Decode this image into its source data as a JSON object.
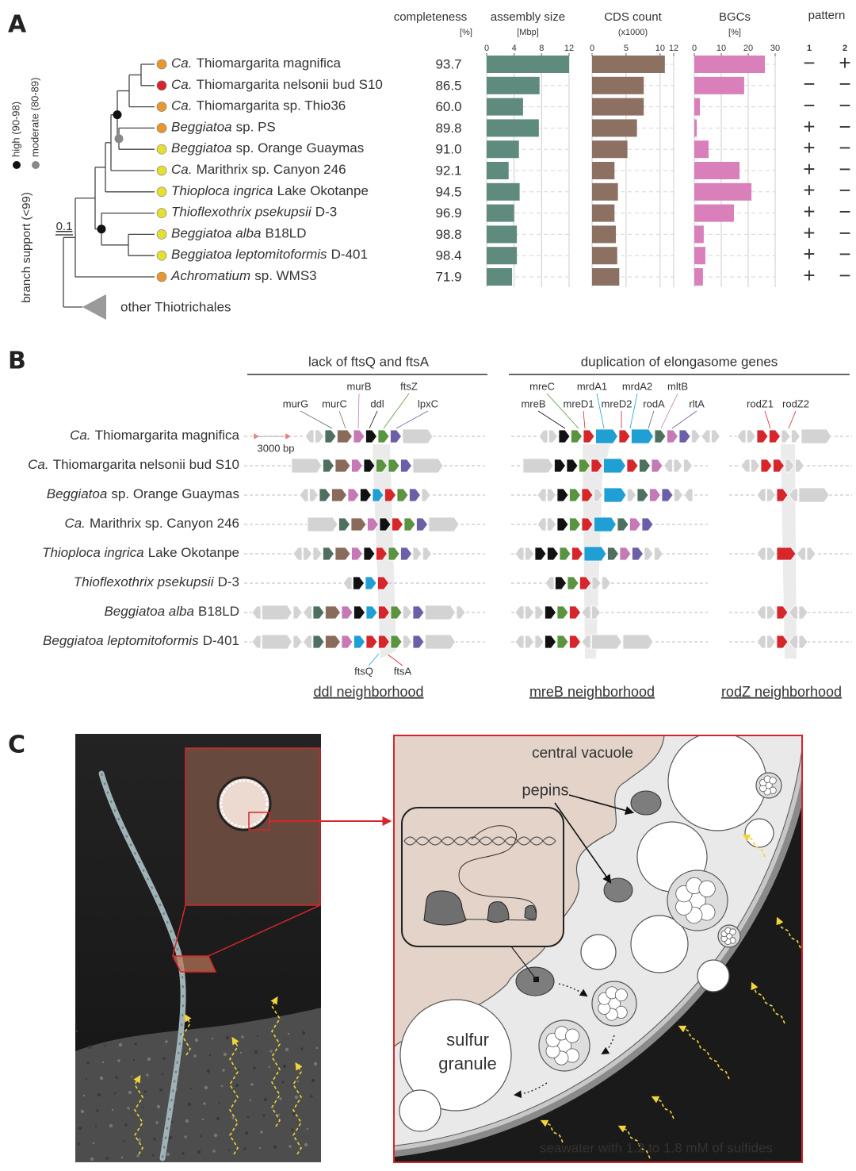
{
  "panel_labels": [
    "A",
    "B",
    "C"
  ],
  "panel_a": {
    "support_axis_label": "branch support (<99)",
    "support_levels": [
      {
        "label": "high (90-98)",
        "color": "#111111"
      },
      {
        "label": "moderate (80-89)",
        "color": "#888888"
      }
    ],
    "scale_label": "0.1",
    "outgroup_label": "other Thiotrichales",
    "taxa": [
      {
        "italic": "Ca.",
        "rest": "Thiomargarita magnifica",
        "dot_color": "#e8962e"
      },
      {
        "italic": "Ca.",
        "rest": "Thiomargarita nelsonii bud S10",
        "dot_color": "#d7262b"
      },
      {
        "italic": "Ca.",
        "rest": "Thiomargarita sp. Thio36",
        "dot_color": "#e8962e"
      },
      {
        "italic": "Beggiatoa",
        "rest": "sp. PS",
        "dot_color": "#e8962e"
      },
      {
        "italic": "Beggiatoa",
        "rest": "sp. Orange Guaymas",
        "dot_color": "#e4e033"
      },
      {
        "italic": "Ca.",
        "rest": "Marithrix sp. Canyon 246",
        "dot_color": "#e4e033"
      },
      {
        "italic": "Thioploca ingrica",
        "rest": "Lake Okotanpe",
        "dot_color": "#e4e033"
      },
      {
        "italic": "Thioflexothrix psekupsii",
        "rest": "D-3",
        "dot_color": "#e4e033"
      },
      {
        "italic": "Beggiatoa alba",
        "rest": "B18LD",
        "dot_color": "#e4e033"
      },
      {
        "italic": "Beggiatoa leptomitoformis",
        "rest": "D-401",
        "dot_color": "#e4e033"
      },
      {
        "italic": "Achromatium",
        "rest": "sp. WMS3",
        "dot_color": "#e8962e"
      }
    ],
    "completeness": {
      "header": "completeness",
      "unit_label": "[%]",
      "values": [
        "93.7",
        "86.5",
        "60.0",
        "89.8",
        "91.0",
        "92.1",
        "94.5",
        "96.9",
        "98.8",
        "98.4",
        "71.9"
      ]
    },
    "pattern": {
      "header": "pattern",
      "columns": [
        "1",
        "2"
      ],
      "rows": [
        [
          "−",
          "+"
        ],
        [
          "−",
          "−"
        ],
        [
          "−",
          "−"
        ],
        [
          "+",
          "−"
        ],
        [
          "+",
          "−"
        ],
        [
          "+",
          "−"
        ],
        [
          "+",
          "−"
        ],
        [
          "+",
          "−"
        ],
        [
          "+",
          "−"
        ],
        [
          "+",
          "−"
        ],
        [
          "+",
          "−"
        ]
      ]
    }
  },
  "chart_data": [
    {
      "type": "bar",
      "orientation": "horizontal",
      "title": "assembly size",
      "unit_label": "[Mbp]",
      "color": "#5e8b7e",
      "xlim": [
        0,
        12
      ],
      "xticks": [
        0,
        4,
        8,
        12
      ],
      "grid": true,
      "values": [
        12.0,
        7.7,
        5.3,
        7.6,
        4.7,
        3.2,
        4.8,
        4.0,
        4.4,
        4.4,
        3.7
      ]
    },
    {
      "type": "bar",
      "orientation": "horizontal",
      "title": "CDS count",
      "unit_label": "(x1000)",
      "color": "#8c7163",
      "xlim": [
        0,
        12
      ],
      "xticks": [
        0,
        5,
        10,
        12
      ],
      "grid": true,
      "values": [
        10.7,
        7.6,
        7.6,
        6.6,
        5.2,
        3.3,
        3.8,
        3.3,
        3.5,
        3.7,
        4.0
      ]
    },
    {
      "type": "bar",
      "orientation": "horizontal",
      "title": "BGCs",
      "unit_label": "[%]",
      "color": "#d97fb9",
      "xlim": [
        0,
        30
      ],
      "xticks": [
        0,
        10,
        20,
        30
      ],
      "grid": true,
      "values": [
        26.2,
        18.5,
        2.1,
        0.9,
        5.3,
        16.8,
        21.2,
        14.7,
        3.5,
        4.1,
        3.2
      ]
    }
  ],
  "panel_b": {
    "headers": [
      "lack of ftsQ and ftsA",
      "duplication of elongasome genes"
    ],
    "gene_labels": [
      {
        "text": "murG",
        "color": "#4f7060"
      },
      {
        "text": "murC",
        "color": "#8a6a5a"
      },
      {
        "text": "murB",
        "color": "#c57ab5"
      },
      {
        "text": "ddl",
        "color": "#111111"
      },
      {
        "text": "ftsZ",
        "color": "#5a9440"
      },
      {
        "text": "lpxC",
        "color": "#6b5fa8"
      },
      {
        "text": "mreC",
        "color": "#5a9440"
      },
      {
        "text": "mrdA1",
        "color": "#1f9fd4"
      },
      {
        "text": "mrdA2",
        "color": "#1f9fd4"
      },
      {
        "text": "mltB",
        "color": "#c57ab5"
      },
      {
        "text": "mreB",
        "color": "#111111"
      },
      {
        "text": "mreD1",
        "color": "#d7262b"
      },
      {
        "text": "mreD2",
        "color": "#d7262b"
      },
      {
        "text": "rodA",
        "color": "#4f7060"
      },
      {
        "text": "rltA",
        "color": "#6b5fa8"
      },
      {
        "text": "rodZ1",
        "color": "#d7262b"
      },
      {
        "text": "rodZ2",
        "color": "#d7262b"
      },
      {
        "text": "ftsQ",
        "color": "#1f9fd4"
      },
      {
        "text": "ftsA",
        "color": "#d7262b"
      }
    ],
    "scale_label": "3000 bp",
    "organisms": [
      {
        "italic": "Ca.",
        "rest": "Thiomargarita magnifica"
      },
      {
        "italic": "Ca.",
        "rest": "Thiomargarita nelsonii bud S10"
      },
      {
        "italic": "Beggiatoa",
        "rest": "sp. Orange Guaymas"
      },
      {
        "italic": "Ca.",
        "rest": "Marithrix sp. Canyon 246"
      },
      {
        "italic": "Thioploca ingrica",
        "rest": "Lake Okotanpe"
      },
      {
        "italic": "Thioflexothrix psekupsii",
        "rest": "D-3"
      },
      {
        "italic": "Beggiatoa alba",
        "rest": "B18LD"
      },
      {
        "italic": "Beggiatoa leptomitoformis",
        "rest": "D-401"
      }
    ],
    "neighborhoods": [
      "ddl neighborhood",
      "mreB neighborhood",
      "rodZ neighborhood"
    ]
  },
  "panel_c": {
    "central_vacuole": "central vacuole",
    "pepins": "pepins",
    "sulfur_granule": [
      "sulfur",
      "granule"
    ],
    "seawater": "seawater with 1.2 to 1.8 mM of sulfides"
  }
}
